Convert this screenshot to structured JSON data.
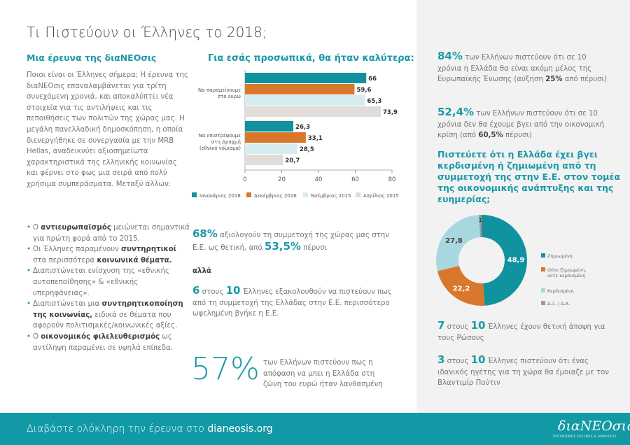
{
  "title": "Τι Πιστεύουν οι Έλληνες το 2018;",
  "left": {
    "heading": "Μια έρευνα της διαΝΕΟσις",
    "intro": "Ποιοι είναι οι Έλληνες σήμερα; Η έρευνα της διαΝΕΟσις επαναλαμβάνεται για τρίτη συνεχόμενη χρονιά, και αποκαλύπτει νέα στοιχεία για τις αντιλήψεις και τις πεποιθήσεις των πολιτών της χώρας μας. Η μεγάλη πανελλαδική δημοσκόπηση, η οποία διενεργήθηκε σε συνεργασία με την MRB Hellas, αναδεικνύει αξιοσημείωτα χαρακτηριστικά της ελληνικής κοινωνίας και φέρνει στο φως μια σειρά από πολύ χρήσιμα συμπεράσματα. Μεταξύ άλλων:",
    "bullets": [
      {
        "pre": "Ο ",
        "bold": "αντιευρωπαϊσμός",
        "post": " μειώνεται σημαντικά για πρώτη φορά από το 2015."
      },
      {
        "pre": "Οι Έλληνες παραμένουν ",
        "bold": "συντηρητικοί",
        "post": " στα περισσότερα ",
        "bold2": "κοινωνικά θέματα."
      },
      {
        "pre": "Διαπιστώνεται ενίσχυση της «εθνικής αυτοπεποίθησης» & «εθνικής υπερηφάνειας».",
        "bold": "",
        "post": ""
      },
      {
        "pre": "Διαπιστώνεται μια ",
        "bold": "συντηρητικοποίηση της κοινωνίας,",
        "post": " ειδικά σε θέματα που αφορούν πολιτισμικές/κοινωνικές αξίες."
      },
      {
        "pre": "Ο ",
        "bold": "οικονομικός φιλελευθερισμός",
        "post": " ως αντίληψη παραμένει σε υψηλά επίπεδα."
      }
    ]
  },
  "middle": {
    "stat68": {
      "num": "68%",
      "text": " αξιολογούν τη συμμετοχή της χώρας μας στην Ε.Ε. ως θετική, από ",
      "num2": "53,5%",
      "text2": " πέρυσι"
    },
    "but": "αλλά",
    "stat6": {
      "num": "6",
      "mid": " στους ",
      "num2": "10",
      "text": " Έλληνες εξακολουθούν να πιστεύουν πως από τη συμμετοχή της Ελλάδας στην Ε.Ε. περισσότερο ωφελημένη βγήκε η Ε.Ε."
    },
    "stat57": {
      "num": "57%",
      "text": "των Ελλήνων πιστεύουν πως η απόφαση να μπει η Ελλάδα στη ζώνη του ευρώ ήταν λανθασμένη"
    }
  },
  "right": {
    "stat84": {
      "num": "84%",
      "text": " των Ελλήνων πιστεύουν ότι σε 10 χρόνια η Ελλάδα θα είναι ακόμη μέλος της Ευρωπαϊκής Ένωσης (αύξηση ",
      "bold": "25%",
      "text2": " από πέρυσι)"
    },
    "stat52": {
      "num": "52,4%",
      "text": " των Ελλήνων πιστεύουν ότι σε 10 χρόνια δεν θα έχουμε βγει από την οικονομική κρίση (από ",
      "bold": "60,5%",
      "text2": " πέρυσι)"
    },
    "question": "Πιστεύετε ότι η Ελλάδα έχει βγει κερδισμένη ή ζημιωμένη από τη συμμετοχή της στην Ε.Ε. στον τομέα της οικονομικής ανάπτυξης και της ευημερίας;",
    "stat7": {
      "num": "7",
      "mid": " στους ",
      "num2": "10",
      "text": " Έλληνες έχουν θετική άποψη για τους Ρώσους"
    },
    "stat3": {
      "num": "3",
      "mid": " στους ",
      "num2": "10",
      "text": " Έλληνες πιστεύουν ότι ένας ιδανικός ηγέτης για τη χώρα θα έμοιαζε με τον Βλαντιμίρ Πούτιν"
    }
  },
  "footer": {
    "text": "Διαβάστε ολόκληρη την έρευνα στο ",
    "link": "dianeosis.org",
    "logo": "διαΝΕΟσις",
    "logo_tag": "ΟΡΓΑΝΙΣΜΟΣ ΕΡΕΥΝΑΣ & ΑΝΑΛΥΣΗΣ"
  },
  "chart_data": [
    {
      "type": "bar",
      "orientation": "horizontal",
      "title": "Για εσάς προσωπικά, θα ήταν καλύτερα:",
      "categories": [
        "Να παραμείνουμε στο ευρώ",
        "Να επιστρέψουμε στη Δραχμή (εθνικό νόμισμα)"
      ],
      "series": [
        {
          "name": "Ιανουάριος 2018",
          "values": [
            66,
            26.3
          ],
          "labels": [
            "66",
            "26,3"
          ],
          "color": "#11929f"
        },
        {
          "name": "Δεκέμβριος 2016",
          "values": [
            59.6,
            33.1
          ],
          "labels": [
            "59,6",
            "33,1"
          ],
          "color": "#d9782d"
        },
        {
          "name": "Νοέμβριος 2015",
          "values": [
            65.3,
            28.5
          ],
          "labels": [
            "65,3",
            "28,5"
          ],
          "color": "#d6ecf0"
        },
        {
          "name": "Απρίλιος 2015",
          "values": [
            73.9,
            20.7
          ],
          "labels": [
            "73,9",
            "20,7"
          ],
          "color": "#e1dcd8"
        }
      ],
      "xlim": [
        0,
        80
      ],
      "xticks": [
        "0",
        "20",
        "40",
        "60",
        "80"
      ],
      "legend": "bottom"
    },
    {
      "type": "pie",
      "donut": true,
      "slices": [
        {
          "name": "Ζημιωμένη",
          "value": 48.9,
          "label": "48,9",
          "color": "#11929f"
        },
        {
          "name": "Ούτε ζημιωμένη, ούτε κερδισμένη",
          "value": 22.2,
          "label": "22,2",
          "color": "#d9782d"
        },
        {
          "name": "Κερδισμένη",
          "value": 27.8,
          "label": "27,8",
          "color": "#a8d8df"
        },
        {
          "name": "Δ.Ξ. / Δ.Α.",
          "value": 1,
          "label": "1",
          "color": "#9d9d9d"
        }
      ],
      "legend": "right"
    }
  ]
}
